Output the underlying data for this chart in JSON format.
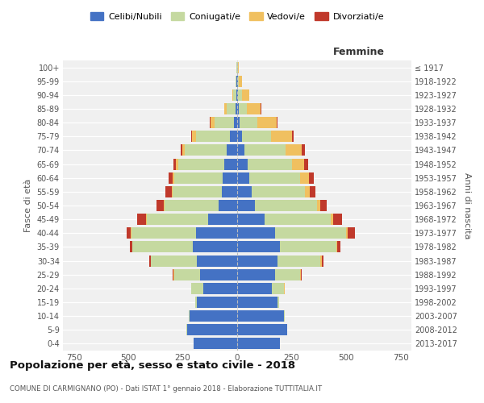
{
  "age_groups": [
    "0-4",
    "5-9",
    "10-14",
    "15-19",
    "20-24",
    "25-29",
    "30-34",
    "35-39",
    "40-44",
    "45-49",
    "50-54",
    "55-59",
    "60-64",
    "65-69",
    "70-74",
    "75-79",
    "80-84",
    "85-89",
    "90-94",
    "95-99",
    "100+"
  ],
  "birth_years": [
    "2013-2017",
    "2008-2012",
    "2003-2007",
    "1998-2002",
    "1993-1997",
    "1988-1992",
    "1983-1987",
    "1978-1982",
    "1973-1977",
    "1968-1972",
    "1963-1967",
    "1958-1962",
    "1953-1957",
    "1948-1952",
    "1943-1947",
    "1938-1942",
    "1933-1937",
    "1928-1932",
    "1923-1927",
    "1918-1922",
    "≤ 1917"
  ],
  "males": {
    "celibi": [
      200,
      230,
      220,
      185,
      155,
      170,
      185,
      205,
      190,
      135,
      85,
      70,
      65,
      60,
      50,
      35,
      15,
      8,
      4,
      2,
      1
    ],
    "coniugati": [
      0,
      2,
      3,
      8,
      55,
      120,
      210,
      275,
      295,
      280,
      248,
      225,
      225,
      210,
      190,
      155,
      90,
      40,
      15,
      4,
      1
    ],
    "vedovi": [
      0,
      0,
      0,
      0,
      0,
      2,
      2,
      3,
      5,
      5,
      5,
      5,
      5,
      10,
      12,
      18,
      18,
      12,
      5,
      2,
      1
    ],
    "divorziati": [
      0,
      0,
      0,
      0,
      2,
      4,
      5,
      8,
      18,
      38,
      32,
      28,
      18,
      14,
      9,
      4,
      2,
      1,
      0,
      0,
      0
    ]
  },
  "females": {
    "nubili": [
      195,
      228,
      215,
      185,
      160,
      175,
      185,
      195,
      175,
      125,
      80,
      65,
      55,
      48,
      32,
      22,
      12,
      7,
      3,
      2,
      1
    ],
    "coniugate": [
      0,
      2,
      2,
      8,
      55,
      115,
      198,
      260,
      325,
      305,
      285,
      245,
      235,
      205,
      190,
      135,
      82,
      38,
      20,
      6,
      1
    ],
    "vedove": [
      0,
      0,
      0,
      0,
      2,
      2,
      5,
      5,
      8,
      10,
      15,
      22,
      38,
      55,
      75,
      95,
      88,
      62,
      32,
      14,
      4
    ],
    "divorziate": [
      0,
      0,
      0,
      0,
      2,
      4,
      8,
      14,
      32,
      42,
      32,
      28,
      22,
      18,
      14,
      6,
      4,
      4,
      1,
      0,
      0
    ]
  },
  "colors": {
    "celibi_nubili": "#4472C4",
    "coniugati": "#C5D9A0",
    "vedovi": "#F0C060",
    "divorziati": "#C0392B"
  },
  "xlim": 800,
  "title": "Popolazione per età, sesso e stato civile - 2018",
  "subtitle": "COMUNE DI CARMIGNANO (PO) - Dati ISTAT 1° gennaio 2018 - Elaborazione TUTTITALIA.IT",
  "label_femmine": "Femmine",
  "ylabel_left": "Fasce di età",
  "ylabel_right": "Anni di nascita"
}
